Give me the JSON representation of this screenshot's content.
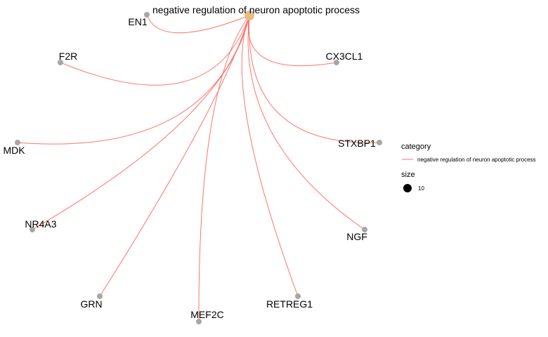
{
  "network": {
    "hub": {
      "label": "negative regulation of neuron apoptotic process",
      "color": "#E5BE86"
    },
    "edge_color": "#F8766D",
    "gene_node_color": "#A6A6A6",
    "genes": [
      {
        "id": "EN1",
        "label": "EN1"
      },
      {
        "id": "F2R",
        "label": "F2R"
      },
      {
        "id": "CX3CL1",
        "label": "CX3CL1"
      },
      {
        "id": "MDK",
        "label": "MDK"
      },
      {
        "id": "STXBP1",
        "label": "STXBP1"
      },
      {
        "id": "NR4A3",
        "label": "NR4A3"
      },
      {
        "id": "NGF",
        "label": "NGF"
      },
      {
        "id": "GRN",
        "label": "GRN"
      },
      {
        "id": "MEF2C",
        "label": "MEF2C"
      },
      {
        "id": "RETREG1",
        "label": "RETREG1"
      }
    ]
  },
  "legend": {
    "category_title": "category",
    "category_item": "negative regulation of neuron apoptotic process",
    "size_title": "size",
    "size_value": "10"
  }
}
